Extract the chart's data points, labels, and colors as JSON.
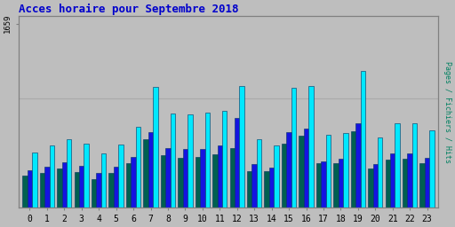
{
  "title": "Acces horaire pour Septembre 2018",
  "ylabel": "Pages / Fichiers / Hits",
  "ymax": 1659,
  "background_color": "#bebebe",
  "plot_bg_color": "#bebebe",
  "bar_colors": [
    "#006050",
    "#1414e0",
    "#00e8ff"
  ],
  "bar_edge_color": "#003060",
  "title_color": "#0000cc",
  "ylabel_color": "#008060",
  "hours": [
    0,
    1,
    2,
    3,
    4,
    5,
    6,
    7,
    8,
    9,
    10,
    11,
    12,
    13,
    14,
    15,
    16,
    17,
    18,
    19,
    20,
    21,
    22,
    23
  ],
  "pages": [
    290,
    310,
    350,
    320,
    260,
    310,
    400,
    620,
    470,
    450,
    460,
    480,
    540,
    330,
    330,
    580,
    650,
    400,
    400,
    690,
    350,
    430,
    440,
    400
  ],
  "fichiers": [
    340,
    370,
    410,
    380,
    310,
    370,
    460,
    680,
    540,
    530,
    530,
    560,
    810,
    390,
    360,
    680,
    710,
    420,
    440,
    760,
    390,
    490,
    490,
    450
  ],
  "hits": [
    500,
    560,
    620,
    580,
    490,
    570,
    730,
    1090,
    850,
    840,
    860,
    870,
    1100,
    620,
    560,
    1080,
    1100,
    660,
    670,
    1230,
    630,
    760,
    760,
    700
  ]
}
